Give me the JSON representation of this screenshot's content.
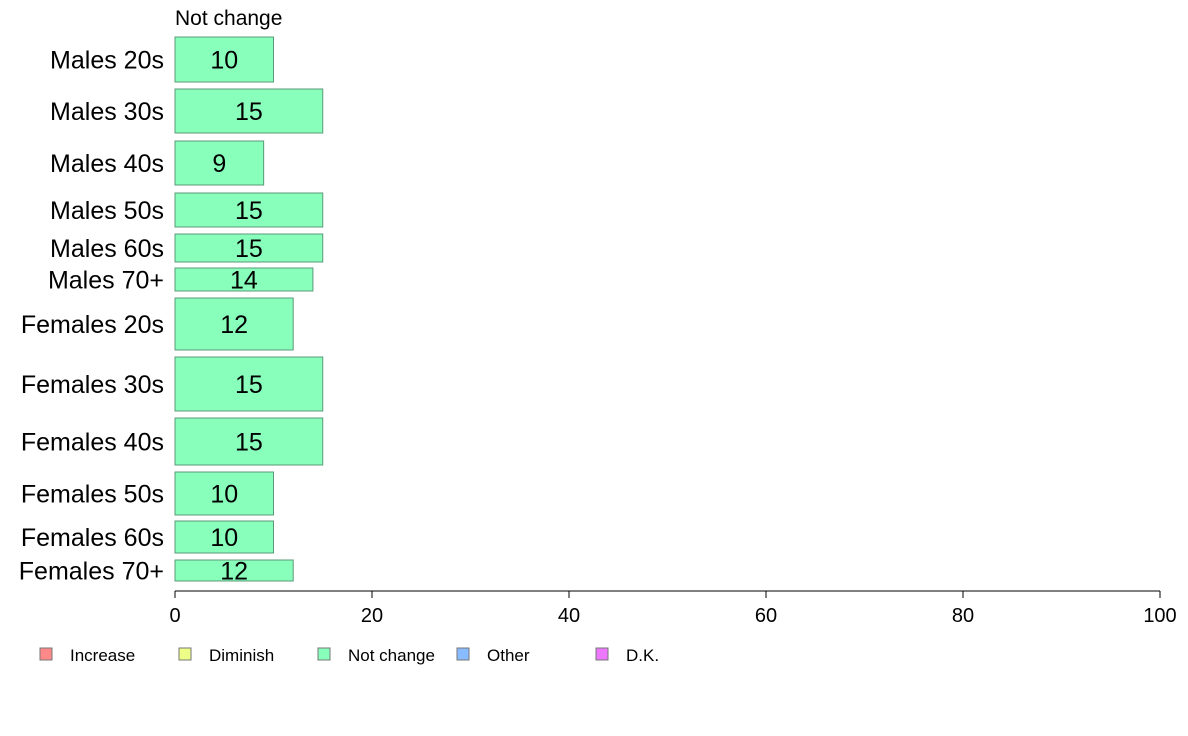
{
  "chart_data": {
    "type": "bar",
    "orientation": "horizontal",
    "series_title": "Not change",
    "categories": [
      "Males 20s",
      "Males 30s",
      "Males 40s",
      "Males 50s",
      "Males 60s",
      "Males 70+",
      "Females 20s",
      "Females 30s",
      "Females 40s",
      "Females 50s",
      "Females 60s",
      "Females 70+"
    ],
    "values": [
      10,
      15,
      9,
      15,
      15,
      14,
      12,
      15,
      15,
      10,
      10,
      12
    ],
    "value_labels": [
      "10",
      "15",
      "9",
      "15",
      "15",
      "14",
      "12",
      "15",
      "15",
      "10",
      "10",
      "12"
    ],
    "xlim": [
      0,
      100
    ],
    "x_ticks": [
      0,
      20,
      40,
      60,
      80,
      100
    ],
    "x_tick_labels": [
      "0",
      "20",
      "40",
      "60",
      "80",
      "100"
    ],
    "bar_color": "#88ffbb",
    "bar_edge_color": "#5a9a78",
    "legend": {
      "placement": "bottom",
      "items": [
        {
          "label": "Increase",
          "color": "#ff8888"
        },
        {
          "label": "Diminish",
          "color": "#eeff88"
        },
        {
          "label": "Not change",
          "color": "#88ffbb"
        },
        {
          "label": "Other",
          "color": "#88bbff"
        },
        {
          "label": "D.K.",
          "color": "#ee77ff"
        }
      ]
    }
  }
}
